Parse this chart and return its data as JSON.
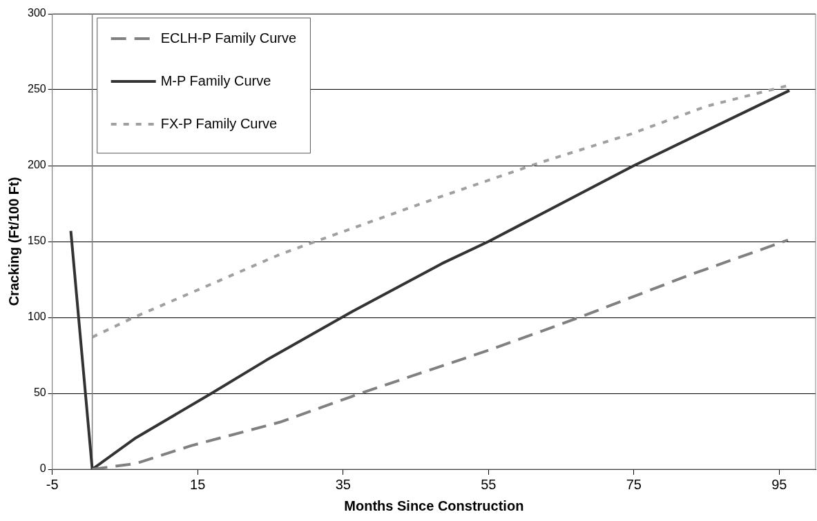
{
  "chart_data": {
    "type": "line",
    "xlabel": "Months Since Construction",
    "ylabel": "Cracking (Ft/100 Ft)",
    "xlim": [
      -5,
      100
    ],
    "xticks": [
      -5,
      15,
      35,
      55,
      75,
      95
    ],
    "ylim": [
      0,
      300
    ],
    "yticks": [
      0,
      50,
      100,
      150,
      200,
      250,
      300
    ],
    "grid": "y",
    "legend": "top left",
    "marker": "none",
    "ref_lines": [
      {
        "axis": "x",
        "value": 0.5,
        "color": "#808080"
      }
    ],
    "series": [
      {
        "name": "ECLH-P Family Curve",
        "color": "#808080",
        "line_style": "dashed",
        "x": [
          0.5,
          6.5,
          14.1,
          26.3,
          38,
          55.4,
          67.5,
          82.4,
          96.2
        ],
        "values": [
          0,
          3.8,
          15.5,
          31,
          51,
          79,
          100,
          127.5,
          151
        ]
      },
      {
        "name": "M-P Family Curve",
        "color": "#333333",
        "line_style": "solid",
        "x": [
          -2.45,
          0.5,
          6.5,
          16.9,
          24.5,
          36.3,
          48.6,
          55,
          75,
          96.4
        ],
        "values": [
          157,
          0,
          20.7,
          50,
          72,
          104,
          135.5,
          150,
          200,
          249.5
        ]
      },
      {
        "name": "FX-P Family Curve",
        "color": "#a0a0a0",
        "line_style": "dotted",
        "x": [
          0.5,
          6.2,
          16.9,
          26.3,
          31.2,
          48.1,
          62.1,
          74.7,
          84.9,
          96.4
        ],
        "values": [
          87,
          100,
          122,
          141.5,
          150,
          179,
          202,
          221,
          239,
          253
        ]
      }
    ]
  }
}
